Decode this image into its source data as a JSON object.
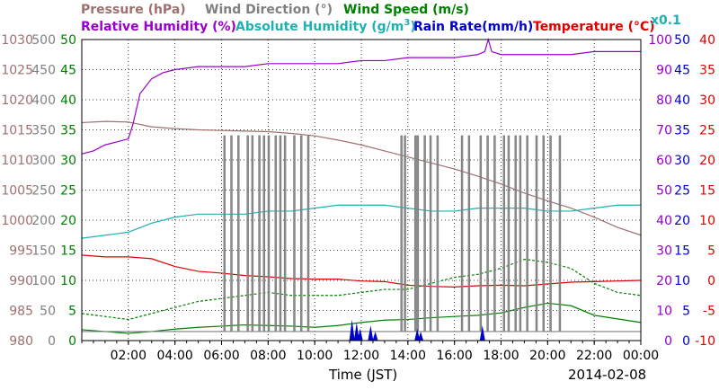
{
  "chart_data": {
    "type": "line",
    "x_label": "Time (JST)",
    "date_label": "2014-02-08",
    "x_ticks": [
      "02:00",
      "04:00",
      "06:00",
      "08:00",
      "10:00",
      "12:00",
      "14:00",
      "16:00",
      "18:00",
      "20:00",
      "22:00",
      "00:00"
    ],
    "x_range": [
      "00:00",
      "24:00"
    ],
    "grid": true,
    "axes": [
      {
        "key": "pressure",
        "label": "Pressure (hPa)",
        "unit": "hPa",
        "color": "#a07070",
        "side": "left",
        "range": [
          980,
          1030
        ],
        "ticks": [
          "980",
          "985",
          "990",
          "995",
          "1000",
          "1005",
          "1010",
          "1015",
          "1020",
          "1025",
          "1030"
        ]
      },
      {
        "key": "wind_direction",
        "label": "Wind Direction (°)",
        "unit": "°",
        "color": "#808080",
        "side": "left",
        "range": [
          0,
          500
        ],
        "ticks": [
          "0",
          "50",
          "100",
          "150",
          "200",
          "250",
          "300",
          "350",
          "400",
          "450",
          "500"
        ]
      },
      {
        "key": "wind_speed",
        "label": "Wind Speed (m/s)",
        "unit": "m/s",
        "color": "#008000",
        "side": "left",
        "range": [
          0,
          50
        ],
        "ticks": [
          "0",
          "5",
          "10",
          "15",
          "20",
          "25",
          "30",
          "35",
          "40",
          "45",
          "50"
        ]
      },
      {
        "key": "relative_humidity",
        "label": "Relative Humidity (%)",
        "unit": "%",
        "color": "#9900cc",
        "side": "right",
        "range": [
          0,
          100
        ],
        "ticks": [
          "0",
          "10",
          "20",
          "30",
          "40",
          "50",
          "60",
          "70",
          "80",
          "90",
          "100"
        ]
      },
      {
        "key": "absolute_humidity",
        "label": "Absolute Humidity (g/m³)",
        "unit": "g/m³ x0.1",
        "color": "#20b0b0",
        "side": "right",
        "range": [
          0,
          100
        ],
        "ticks": []
      },
      {
        "key": "rain_rate",
        "label": "Rain Rate(mm/h)",
        "unit": "mm/h",
        "color": "#0000cc",
        "side": "right",
        "range": [
          0,
          50
        ],
        "ticks": [
          "0",
          "5",
          "10",
          "15",
          "20",
          "25",
          "30",
          "35",
          "40",
          "45",
          "50"
        ]
      },
      {
        "key": "temperature",
        "label": "Temperature (°C)",
        "unit": "°C",
        "color": "#e00000",
        "side": "right",
        "range": [
          -10,
          40
        ],
        "ticks": [
          "-10",
          "-5",
          "0",
          "5",
          "10",
          "15",
          "20",
          "25",
          "30",
          "35",
          "40"
        ]
      }
    ],
    "header": {
      "pressure": "Pressure (hPa)",
      "wind_direction": "Wind Direction (°)",
      "wind_speed": "Wind Speed (m/s)",
      "relative_humidity": "Relative Humidity (%)",
      "absolute_humidity_prefix": "Absolute Humidity (g/m",
      "absolute_humidity_sup": "3",
      "absolute_humidity_suffix": ")",
      "rain_rate": "Rain Rate(mm/h)",
      "temperature": "Temperature (°C)",
      "abs_scale_note": "x0.1"
    },
    "series": [
      {
        "name": "Pressure (hPa)",
        "axis": "pressure",
        "color": "#a07070",
        "x": [
          0,
          1,
          2,
          3,
          4,
          5,
          6,
          7,
          8,
          9,
          10,
          11,
          12,
          13,
          14,
          15,
          16,
          17,
          18,
          19,
          20,
          21,
          22,
          23,
          24
        ],
        "y": [
          1016.2,
          1016.4,
          1016.3,
          1015.5,
          1015.2,
          1015.0,
          1014.9,
          1014.8,
          1014.7,
          1014.4,
          1014.0,
          1013.3,
          1012.5,
          1011.5,
          1010.5,
          1009.5,
          1008.5,
          1007.3,
          1006.0,
          1004.5,
          1003.2,
          1002.0,
          1000.5,
          998.8,
          997.5
        ]
      },
      {
        "name": "Relative Humidity (%)",
        "axis": "relative_humidity",
        "color": "#9900cc",
        "x": [
          0,
          0.5,
          1,
          1.5,
          2,
          2.2,
          2.5,
          3,
          3.5,
          4,
          5,
          6,
          7,
          8,
          9,
          10,
          11,
          12,
          13,
          14,
          15,
          16,
          17,
          17.3,
          17.45,
          17.6,
          18,
          19,
          20,
          21,
          22,
          23,
          24
        ],
        "y": [
          62,
          63,
          65,
          66,
          67,
          72,
          82,
          87,
          89,
          90,
          91,
          91,
          91,
          92,
          92,
          92,
          92,
          93,
          93,
          94,
          94,
          94,
          95,
          96,
          100,
          96,
          95,
          95,
          95,
          95,
          96,
          96,
          96
        ]
      },
      {
        "name": "Absolute Humidity (g/m³)",
        "axis": "absolute_humidity",
        "color": "#20b0b0",
        "x": [
          0,
          1,
          2,
          3,
          4,
          5,
          6,
          7,
          8,
          9,
          10,
          11,
          12,
          13,
          14,
          15,
          16,
          17,
          18,
          19,
          20,
          21,
          22,
          23,
          24
        ],
        "y": [
          34,
          35,
          36,
          39,
          41,
          42,
          42,
          42,
          43,
          43,
          44,
          45,
          45,
          45,
          44,
          43,
          43,
          44,
          44,
          44,
          43,
          43,
          44,
          45,
          45
        ]
      },
      {
        "name": "Temperature (°C)",
        "axis": "temperature",
        "color": "#e00000",
        "x": [
          0,
          1,
          2,
          3,
          4,
          5,
          6,
          7,
          8,
          9,
          10,
          11,
          12,
          13,
          14,
          15,
          16,
          17,
          18,
          19,
          20,
          21,
          22,
          23,
          24
        ],
        "y": [
          4.2,
          3.9,
          3.9,
          3.6,
          2.3,
          1.5,
          1.2,
          0.8,
          0.6,
          0.3,
          0.2,
          0.2,
          -0.1,
          -0.2,
          -0.8,
          -1.0,
          -1.1,
          -0.9,
          -0.8,
          -0.9,
          -0.6,
          -0.3,
          -0.2,
          -0.1,
          0.0
        ]
      },
      {
        "name": "Wind Speed (m/s)",
        "axis": "wind_speed",
        "color": "#008000",
        "x": [
          0,
          1,
          2,
          3,
          4,
          5,
          6,
          7,
          8,
          9,
          10,
          11,
          12,
          13,
          14,
          15,
          16,
          17,
          18,
          19,
          20,
          21,
          22,
          23,
          24
        ],
        "y": [
          1.8,
          1.5,
          1.2,
          1.5,
          1.9,
          2.2,
          2.4,
          2.6,
          2.5,
          2.4,
          2.2,
          2.5,
          3.0,
          3.4,
          3.5,
          3.8,
          4.0,
          4.2,
          4.6,
          5.5,
          6.2,
          5.8,
          4.2,
          3.6,
          3.0
        ]
      },
      {
        "name": "Wind Speed gust (m/s)",
        "axis": "wind_speed",
        "color": "#008000",
        "dashed": true,
        "x": [
          0,
          1,
          2,
          3,
          4,
          5,
          6,
          7,
          8,
          9,
          10,
          11,
          12,
          13,
          14,
          15,
          16,
          17,
          18,
          19,
          20,
          21,
          22,
          23,
          24
        ],
        "y": [
          4.5,
          4.0,
          3.5,
          4.5,
          5.5,
          6.5,
          7.0,
          7.5,
          8.0,
          7.5,
          7.5,
          7.5,
          8.0,
          8.5,
          8.5,
          9.5,
          10.5,
          11.0,
          12.0,
          13.5,
          13.0,
          12.0,
          9.5,
          8.0,
          7.5
        ]
      },
      {
        "name": "Wind Direction (°)",
        "axis": "wind_direction",
        "color": "#808080",
        "step": true,
        "x": [
          0,
          6.1,
          6.15,
          6.4,
          6.45,
          6.7,
          6.75,
          7.1,
          7.15,
          7.3,
          7.35,
          7.6,
          7.65,
          7.8,
          7.85,
          8.0,
          8.05,
          8.3,
          8.35,
          8.5,
          8.55,
          8.7,
          8.75,
          9.1,
          9.15,
          9.4,
          9.45,
          9.7,
          9.75,
          13.7,
          13.75,
          13.85,
          13.9,
          14.3,
          14.35,
          14.4,
          14.45,
          14.7,
          14.75,
          14.95,
          15.0,
          15.25,
          15.3,
          16.3,
          16.35,
          16.6,
          16.65,
          17.1,
          17.15,
          17.4,
          17.45,
          17.7,
          17.75,
          18.1,
          18.15,
          18.3,
          18.35,
          18.6,
          18.65,
          18.8,
          18.85,
          19.1,
          19.15,
          19.5,
          19.55,
          19.8,
          19.85,
          20.1,
          20.15,
          20.5,
          20.55,
          24
        ],
        "y": [
          15,
          340,
          15,
          340,
          15,
          340,
          15,
          340,
          15,
          340,
          15,
          340,
          15,
          340,
          15,
          340,
          15,
          340,
          15,
          340,
          15,
          340,
          15,
          340,
          15,
          340,
          15,
          340,
          15,
          340,
          15,
          340,
          15,
          340,
          15,
          340,
          15,
          340,
          15,
          340,
          15,
          340,
          15,
          340,
          15,
          340,
          15,
          340,
          15,
          340,
          15,
          340,
          15,
          340,
          15,
          340,
          15,
          340,
          15,
          340,
          15,
          340,
          15,
          340,
          15,
          340,
          15,
          340,
          15,
          340,
          15,
          15
        ]
      },
      {
        "name": "Rain Rate(mm/h)",
        "axis": "rain_rate",
        "color": "#0000cc",
        "bars": true,
        "x": [
          11.6,
          11.8,
          11.95,
          12.4,
          12.6,
          14.4,
          14.55,
          17.2
        ],
        "y": [
          3.5,
          3.0,
          2.0,
          2.5,
          1.5,
          2.0,
          1.5,
          2.5
        ]
      }
    ]
  }
}
